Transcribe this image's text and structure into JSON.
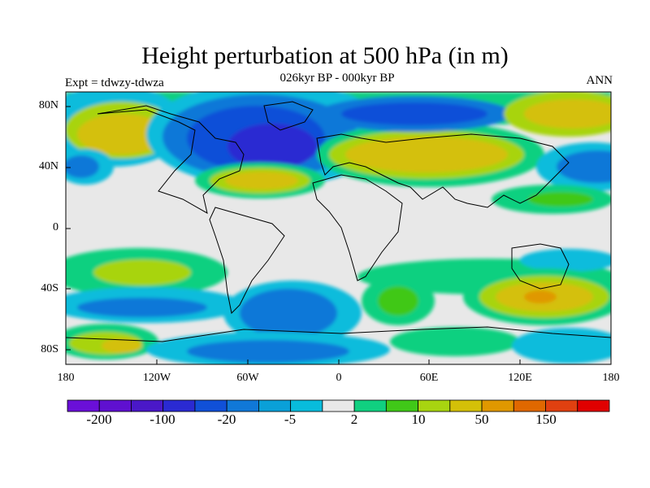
{
  "title": "Height perturbation at 500 hPa (in m)",
  "subtitle": "026kyr BP - 000kyr BP",
  "left_label": "Expt = tdwzy-tdwza",
  "right_label": "ANN",
  "lat_labels": [
    "80N",
    "40N",
    "0",
    "40S",
    "80S"
  ],
  "lon_labels": [
    "180",
    "120W",
    "60W",
    "0",
    "60E",
    "120E",
    "180"
  ],
  "colorbar": {
    "colors": [
      "#6a0fd8",
      "#5f10d0",
      "#4a18c8",
      "#2a2ad2",
      "#1050d8",
      "#1078d8",
      "#0aa0d8",
      "#08bcdc",
      "#e8e8e8",
      "#10d080",
      "#40c818",
      "#a8d410",
      "#d4c008",
      "#e09800",
      "#e06800",
      "#e04010",
      "#e00000"
    ],
    "labels": [
      "-200",
      "-100",
      "-20",
      "-5",
      "2",
      "10",
      "50",
      "150"
    ]
  }
}
